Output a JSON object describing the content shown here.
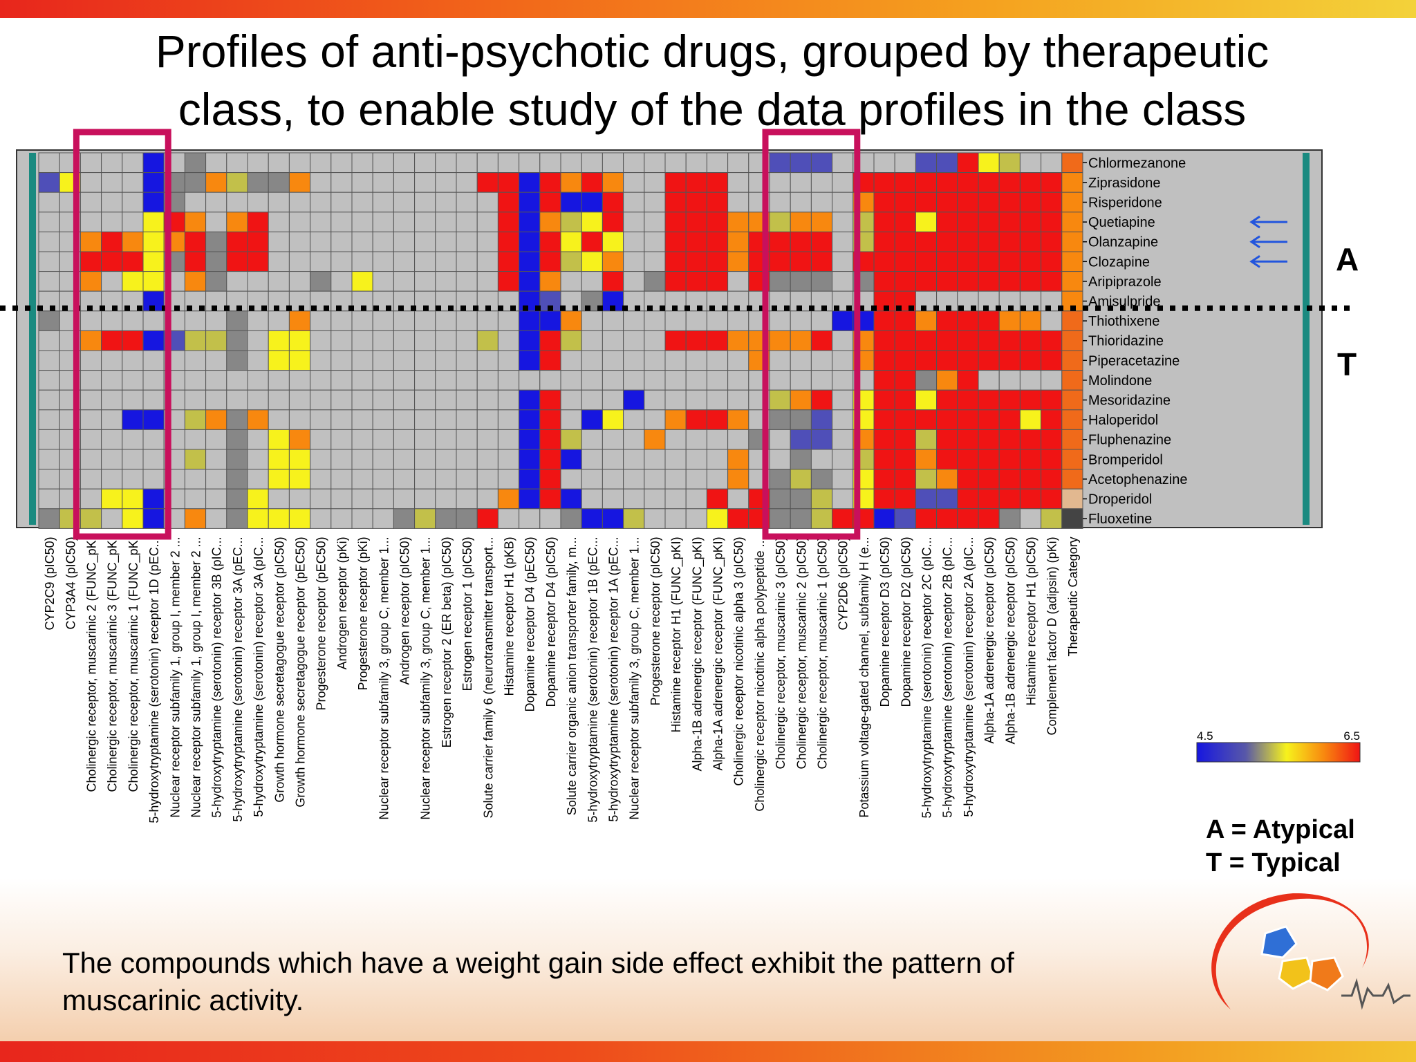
{
  "title": "Profiles of anti-psychotic drugs, grouped by therapeutic class, to enable study of the data profiles in the class",
  "caption": "The compounds which have a weight gain side effect exhibit the pattern of muscarinic activity.",
  "class_labels": {
    "atypical_marker": "A",
    "typical_marker": "T"
  },
  "legend_key": {
    "atypical": "A = Atypical",
    "typical": "T = Typical"
  },
  "colors": {
    "low": "#1c1ce6",
    "mid": "#f5f01e",
    "high": "#f01414",
    "missing": "#c0c0c0",
    "highlight_box": "#c8105c",
    "arrow": "#2255dd",
    "category_bar": "#1a8a80"
  },
  "chart_data": {
    "type": "heatmap",
    "colorbar": {
      "min": 4.5,
      "max": 6.5,
      "min_label": "4.5",
      "max_label": "6.5"
    },
    "rows": [
      "Chlormezanone",
      "Ziprasidone",
      "Risperidone",
      "Quetiapine",
      "Olanzapine",
      "Clozapine",
      "Aripiprazole",
      "Amisulpride",
      "Thiothixene",
      "Thioridazine",
      "Piperacetazine",
      "Molindone",
      "Mesoridazine",
      "Haloperidol",
      "Fluphenazine",
      "Bromperidol",
      "Acetophenazine",
      "Droperidol",
      "Fluoxetine"
    ],
    "columns": [
      "CYP2C9 (pIC50)",
      "CYP3A4 (pIC50)",
      "Cholinergic receptor, muscarinic 2 (FUNC_pKI",
      "Cholinergic receptor, muscarinic 3 (FUNC_pKI",
      "Cholinergic receptor, muscarinic 1 (FUNC_pKI",
      "5-hydroxytryptamine (serotonin) receptor 1D (pEC...",
      "Nuclear receptor subfamily 1, group I, member 2 ...",
      "Nuclear receptor subfamily 1, group I, member 2 ...",
      "5-hydroxytryptamine (serotonin) receptor 3B (pIC...",
      "5-hydroxytryptamine (serotonin) receptor 3A (pEC...",
      "5-hydroxytryptamine (serotonin) receptor 3A (pIC...",
      "Growth hormone secretagogue receptor (pIC50)",
      "Growth hormone secretagogue receptor (pEC50)",
      "Progesterone receptor (pEC50)",
      "Androgen receptor (pKi)",
      "Progesterone receptor (pKi)",
      "Nuclear receptor subfamily 3, group C, member 1...",
      "Androgen receptor (pIC50)",
      "Nuclear receptor subfamily 3, group C, member 1...",
      "Estrogen receptor 2 (ER beta) (pIC50)",
      "Estrogen receptor 1 (pIC50)",
      "Solute carrier family 6 (neurotransmitter transport...",
      "Histamine receptor H1 (pKB)",
      "Dopamine receptor D4 (pEC50)",
      "Dopamine receptor D4 (pIC50)",
      "Solute carrier organic anion transporter family, m...",
      "5-hydroxytryptamine (serotonin) receptor 1B (pEC...",
      "5-hydroxytryptamine (serotonin) receptor 1A (pEC...",
      "Nuclear receptor subfamily 3, group C, member 1...",
      "Progesterone receptor (pIC50)",
      "Histamine receptor H1 (FUNC_pKI)",
      "Alpha-1B adrenergic receptor (FUNC_pKI)",
      "Alpha-1A adrenergic receptor (FUNC_pKI)",
      "Cholinergic receptor nicotinic alpha 3 (pIC50)",
      "Cholinergic receptor nicotinic alpha polypeptide ...",
      "Cholinergic receptor, muscarinic 3 (pIC50)",
      "Cholinergic receptor, muscarinic 2 (pIC50)",
      "Cholinergic receptor, muscarinic 1 (pIC50)",
      "CYP2D6 (pIC50)",
      "Potassium voltage-gated channel, subfamily H (e...",
      "Dopamine receptor D3 (pIC50)",
      "Dopamine receptor D2 (pIC50)",
      "5-hydroxytryptamine (serotonin) receptor 2C (pIC...",
      "5-hydroxytryptamine (serotonin) receptor 2B (pIC...",
      "5-hydroxytryptamine (serotonin) receptor 2A (pIC...",
      "Alpha-1A adrenergic receptor (pIC50)",
      "Alpha-1B adrenergic receptor (pIC50)",
      "Histamine receptor H1 (pIC50)",
      "Complement factor D (adipsin) (pKi)",
      "Therapeutic Category"
    ],
    "highlighted_column_groups": [
      [
        2,
        5
      ],
      [
        35,
        38
      ]
    ],
    "arrowed_rows": [
      "Quetiapine",
      "Olanzapine",
      "Clozapine"
    ],
    "group_divider_after_row": "Amisulpride",
    "cells": [
      [
        "n",
        "n",
        "n",
        "n",
        "n",
        "L",
        "n",
        "d",
        "n",
        "n",
        "n",
        "n",
        "n",
        "n",
        "n",
        "n",
        "n",
        "n",
        "n",
        "n",
        "n",
        "n",
        "n",
        "n",
        "n",
        "n",
        "n",
        "n",
        "n",
        "n",
        "n",
        "n",
        "n",
        "n",
        "n",
        "l",
        "l",
        "l",
        "n",
        "n",
        "n",
        "n",
        "l",
        "l",
        "H",
        "Y",
        "y",
        "n",
        "n",
        "s"
      ],
      [
        "l",
        "Y",
        "n",
        "n",
        "n",
        "L",
        "d",
        "d",
        "O",
        "y",
        "d",
        "d",
        "O",
        "n",
        "n",
        "n",
        "n",
        "n",
        "n",
        "n",
        "n",
        "H",
        "H",
        "L",
        "H",
        "O",
        "H",
        "O",
        "n",
        "n",
        "H",
        "H",
        "H",
        "n",
        "n",
        "n",
        "n",
        "n",
        "n",
        "H",
        "H",
        "H",
        "H",
        "H",
        "H",
        "H",
        "H",
        "H",
        "H",
        "O"
      ],
      [
        "n",
        "n",
        "n",
        "n",
        "n",
        "L",
        "d",
        "n",
        "n",
        "n",
        "n",
        "n",
        "n",
        "n",
        "n",
        "n",
        "n",
        "n",
        "n",
        "n",
        "n",
        "n",
        "H",
        "L",
        "H",
        "L",
        "L",
        "H",
        "n",
        "n",
        "H",
        "H",
        "H",
        "n",
        "n",
        "n",
        "n",
        "n",
        "n",
        "O",
        "H",
        "H",
        "H",
        "H",
        "H",
        "H",
        "H",
        "H",
        "H",
        "O"
      ],
      [
        "n",
        "n",
        "n",
        "n",
        "n",
        "Y",
        "H",
        "O",
        "n",
        "O",
        "H",
        "n",
        "n",
        "n",
        "n",
        "n",
        "n",
        "n",
        "n",
        "n",
        "n",
        "n",
        "H",
        "L",
        "O",
        "y",
        "Y",
        "H",
        "n",
        "n",
        "H",
        "H",
        "H",
        "O",
        "O",
        "y",
        "O",
        "O",
        "n",
        "y",
        "H",
        "H",
        "Y",
        "H",
        "H",
        "H",
        "H",
        "H",
        "H",
        "O"
      ],
      [
        "n",
        "n",
        "O",
        "H",
        "O",
        "Y",
        "O",
        "H",
        "d",
        "H",
        "H",
        "n",
        "n",
        "n",
        "n",
        "n",
        "n",
        "n",
        "n",
        "n",
        "n",
        "n",
        "H",
        "L",
        "H",
        "Y",
        "H",
        "Y",
        "n",
        "n",
        "H",
        "H",
        "H",
        "O",
        "H",
        "H",
        "H",
        "H",
        "n",
        "y",
        "H",
        "H",
        "H",
        "H",
        "H",
        "H",
        "H",
        "H",
        "H",
        "O"
      ],
      [
        "n",
        "n",
        "H",
        "H",
        "H",
        "Y",
        "d",
        "H",
        "d",
        "H",
        "H",
        "n",
        "n",
        "n",
        "n",
        "n",
        "n",
        "n",
        "n",
        "n",
        "n",
        "n",
        "H",
        "L",
        "H",
        "y",
        "Y",
        "O",
        "n",
        "n",
        "H",
        "H",
        "H",
        "O",
        "H",
        "H",
        "H",
        "H",
        "n",
        "H",
        "H",
        "H",
        "H",
        "H",
        "H",
        "H",
        "H",
        "H",
        "H",
        "O"
      ],
      [
        "n",
        "n",
        "O",
        "n",
        "Y",
        "Y",
        "n",
        "O",
        "d",
        "n",
        "n",
        "n",
        "n",
        "d",
        "n",
        "Y",
        "n",
        "n",
        "n",
        "n",
        "n",
        "n",
        "H",
        "L",
        "O",
        "n",
        "n",
        "H",
        "n",
        "d",
        "H",
        "H",
        "H",
        "n",
        "H",
        "d",
        "d",
        "d",
        "n",
        "d",
        "H",
        "H",
        "H",
        "H",
        "H",
        "H",
        "H",
        "H",
        "H",
        "O"
      ],
      [
        "n",
        "n",
        "n",
        "n",
        "n",
        "L",
        "n",
        "n",
        "n",
        "n",
        "n",
        "n",
        "n",
        "n",
        "n",
        "n",
        "n",
        "n",
        "n",
        "n",
        "n",
        "n",
        "n",
        "L",
        "l",
        "n",
        "d",
        "L",
        "n",
        "n",
        "n",
        "n",
        "n",
        "n",
        "n",
        "n",
        "n",
        "n",
        "n",
        "n",
        "H",
        "H",
        "n",
        "n",
        "n",
        "n",
        "n",
        "n",
        "n",
        "O"
      ],
      [
        "d",
        "n",
        "n",
        "n",
        "n",
        "n",
        "n",
        "n",
        "n",
        "d",
        "n",
        "n",
        "O",
        "n",
        "n",
        "n",
        "n",
        "n",
        "n",
        "n",
        "n",
        "n",
        "n",
        "L",
        "L",
        "O",
        "n",
        "n",
        "n",
        "n",
        "n",
        "n",
        "n",
        "n",
        "n",
        "n",
        "n",
        "n",
        "L",
        "L",
        "H",
        "H",
        "O",
        "H",
        "H",
        "H",
        "O",
        "O",
        "n",
        "s"
      ],
      [
        "n",
        "n",
        "O",
        "H",
        "H",
        "L",
        "l",
        "y",
        "y",
        "d",
        "n",
        "Y",
        "Y",
        "n",
        "n",
        "n",
        "n",
        "n",
        "n",
        "n",
        "n",
        "y",
        "n",
        "L",
        "H",
        "y",
        "n",
        "n",
        "n",
        "n",
        "H",
        "H",
        "H",
        "O",
        "O",
        "O",
        "O",
        "H",
        "n",
        "O",
        "H",
        "H",
        "H",
        "H",
        "H",
        "H",
        "H",
        "H",
        "H",
        "s"
      ],
      [
        "n",
        "n",
        "n",
        "n",
        "n",
        "n",
        "n",
        "n",
        "n",
        "d",
        "n",
        "Y",
        "Y",
        "n",
        "n",
        "n",
        "n",
        "n",
        "n",
        "n",
        "n",
        "n",
        "n",
        "L",
        "H",
        "n",
        "n",
        "n",
        "n",
        "n",
        "n",
        "n",
        "n",
        "n",
        "O",
        "n",
        "n",
        "n",
        "n",
        "O",
        "H",
        "H",
        "H",
        "H",
        "H",
        "H",
        "H",
        "H",
        "H",
        "s"
      ],
      [
        "n",
        "n",
        "n",
        "n",
        "n",
        "n",
        "n",
        "n",
        "n",
        "n",
        "n",
        "n",
        "n",
        "n",
        "n",
        "n",
        "n",
        "n",
        "n",
        "n",
        "n",
        "n",
        "n",
        "n",
        "n",
        "n",
        "n",
        "n",
        "n",
        "n",
        "n",
        "n",
        "n",
        "n",
        "n",
        "n",
        "n",
        "n",
        "n",
        "n",
        "H",
        "H",
        "d",
        "O",
        "H",
        "n",
        "n",
        "n",
        "n",
        "s"
      ],
      [
        "n",
        "n",
        "n",
        "n",
        "n",
        "n",
        "n",
        "n",
        "n",
        "n",
        "n",
        "n",
        "n",
        "n",
        "n",
        "n",
        "n",
        "n",
        "n",
        "n",
        "n",
        "n",
        "n",
        "L",
        "H",
        "n",
        "n",
        "n",
        "L",
        "n",
        "n",
        "n",
        "n",
        "n",
        "n",
        "y",
        "O",
        "H",
        "n",
        "Y",
        "H",
        "H",
        "Y",
        "H",
        "H",
        "H",
        "H",
        "H",
        "H",
        "s"
      ],
      [
        "n",
        "n",
        "n",
        "n",
        "L",
        "L",
        "n",
        "y",
        "O",
        "d",
        "O",
        "n",
        "n",
        "n",
        "n",
        "n",
        "n",
        "n",
        "n",
        "n",
        "n",
        "n",
        "n",
        "L",
        "H",
        "n",
        "L",
        "Y",
        "n",
        "n",
        "O",
        "H",
        "H",
        "O",
        "n",
        "d",
        "d",
        "l",
        "n",
        "Y",
        "H",
        "H",
        "H",
        "H",
        "H",
        "H",
        "H",
        "Y",
        "H",
        "s"
      ],
      [
        "n",
        "n",
        "n",
        "n",
        "n",
        "n",
        "n",
        "n",
        "n",
        "d",
        "n",
        "Y",
        "O",
        "n",
        "n",
        "n",
        "n",
        "n",
        "n",
        "n",
        "n",
        "n",
        "n",
        "L",
        "H",
        "y",
        "n",
        "n",
        "n",
        "O",
        "n",
        "n",
        "n",
        "n",
        "d",
        "n",
        "l",
        "l",
        "n",
        "O",
        "H",
        "H",
        "y",
        "H",
        "H",
        "H",
        "H",
        "H",
        "H",
        "s"
      ],
      [
        "n",
        "n",
        "n",
        "n",
        "n",
        "n",
        "n",
        "y",
        "n",
        "d",
        "n",
        "Y",
        "Y",
        "n",
        "n",
        "n",
        "n",
        "n",
        "n",
        "n",
        "n",
        "n",
        "n",
        "L",
        "H",
        "L",
        "n",
        "n",
        "n",
        "n",
        "n",
        "n",
        "n",
        "O",
        "n",
        "n",
        "d",
        "n",
        "n",
        "y",
        "H",
        "H",
        "O",
        "H",
        "H",
        "H",
        "H",
        "H",
        "H",
        "s"
      ],
      [
        "n",
        "n",
        "n",
        "n",
        "n",
        "n",
        "n",
        "n",
        "n",
        "d",
        "n",
        "Y",
        "Y",
        "n",
        "n",
        "n",
        "n",
        "n",
        "n",
        "n",
        "n",
        "n",
        "n",
        "L",
        "H",
        "n",
        "n",
        "n",
        "n",
        "n",
        "n",
        "n",
        "n",
        "O",
        "n",
        "d",
        "y",
        "d",
        "n",
        "Y",
        "H",
        "H",
        "y",
        "O",
        "H",
        "H",
        "H",
        "H",
        "H",
        "s"
      ],
      [
        "n",
        "n",
        "n",
        "Y",
        "Y",
        "L",
        "n",
        "n",
        "n",
        "d",
        "Y",
        "n",
        "n",
        "n",
        "n",
        "n",
        "n",
        "n",
        "n",
        "n",
        "n",
        "n",
        "O",
        "L",
        "H",
        "L",
        "n",
        "n",
        "n",
        "n",
        "n",
        "n",
        "H",
        "n",
        "H",
        "d",
        "d",
        "y",
        "n",
        "Y",
        "H",
        "H",
        "l",
        "l",
        "H",
        "H",
        "H",
        "H",
        "H",
        "t"
      ],
      [
        "d",
        "y",
        "y",
        "n",
        "Y",
        "L",
        "n",
        "O",
        "n",
        "d",
        "Y",
        "Y",
        "Y",
        "n",
        "n",
        "n",
        "n",
        "d",
        "y",
        "d",
        "d",
        "H",
        "n",
        "n",
        "n",
        "d",
        "L",
        "L",
        "y",
        "n",
        "n",
        "n",
        "Y",
        "H",
        "H",
        "d",
        "d",
        "y",
        "H",
        "H",
        "L",
        "l",
        "H",
        "H",
        "H",
        "H",
        "d",
        "n",
        "y",
        "k"
      ]
    ]
  }
}
